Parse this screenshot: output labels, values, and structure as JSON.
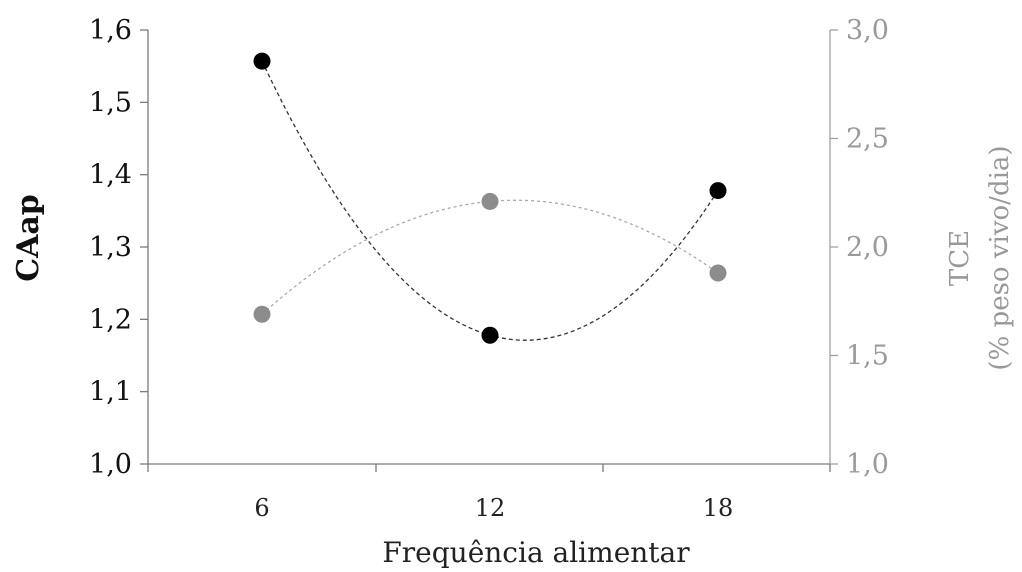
{
  "chart_data": {
    "type": "line",
    "x": [
      6,
      12,
      18
    ],
    "xlabel": "Frequência alimentar",
    "x_tick_labels": [
      "6",
      "12",
      "18"
    ],
    "y_left": {
      "label": "CAap",
      "lim": [
        1.0,
        1.6
      ],
      "ticks": [
        "1,0",
        "1,1",
        "1,2",
        "1,3",
        "1,4",
        "1,5",
        "1,6"
      ]
    },
    "y_right": {
      "label": "TCE",
      "label_line2": "(% peso vivo/dia)",
      "lim": [
        1.0,
        3.0
      ],
      "ticks": [
        "1,0",
        "1,5",
        "2,0",
        "2,5",
        "3,0"
      ]
    },
    "series": [
      {
        "axis": "left",
        "color": "#000000",
        "values": [
          1.557,
          1.178,
          1.378
        ]
      },
      {
        "axis": "right",
        "color": "#8c8c8c",
        "values": [
          1.69,
          2.21,
          1.88
        ]
      }
    ],
    "grid": false,
    "legend": "none"
  }
}
